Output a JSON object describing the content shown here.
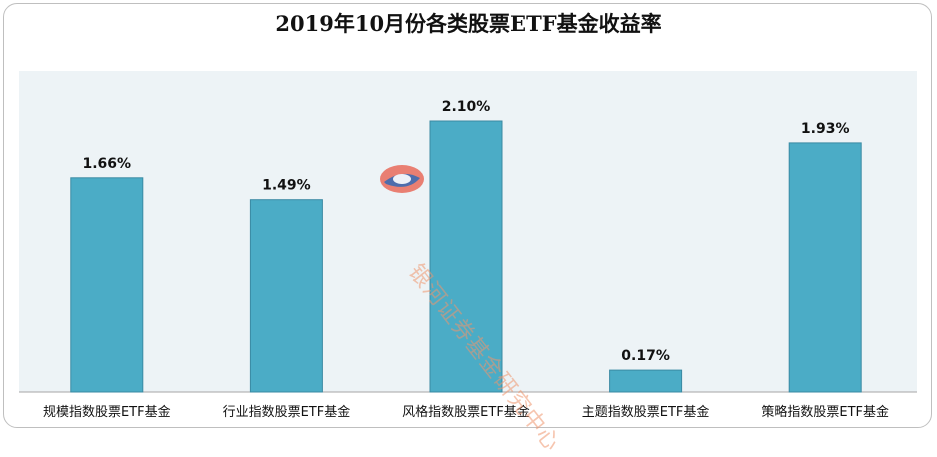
{
  "chart_data": {
    "type": "bar",
    "title": "2019年10月份各类股票ETF基金收益率",
    "categories": [
      "规模指数股票ETF基金",
      "行业指数股票ETF基金",
      "风格指数股票ETF基金",
      "主题指数股票ETF基金",
      "策略指数股票ETF基金"
    ],
    "values": [
      1.66,
      1.49,
      2.1,
      0.17,
      1.93
    ],
    "value_labels": [
      "1.66%",
      "1.49%",
      "2.10%",
      "0.17%",
      "1.93%"
    ],
    "ylim": [
      0,
      2.4
    ],
    "grid": false,
    "legend": "none",
    "bar_color": "#4bacc6",
    "bar_border_color": "#3a8aa3",
    "plot_background": "#edf3f6"
  },
  "watermark": {
    "text": "银河证券基金研究中心",
    "icon": "galaxy-logo-icon"
  }
}
